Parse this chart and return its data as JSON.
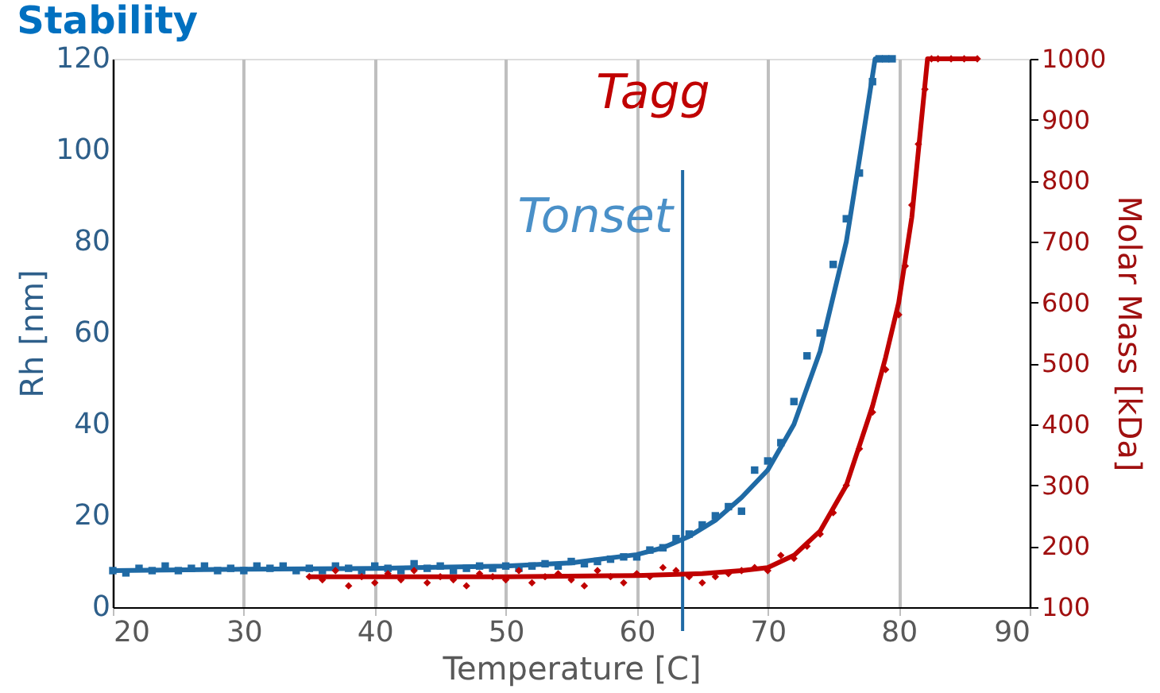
{
  "chart_data": {
    "type": "scatter",
    "title": "Stability",
    "xlabel": "Temperature [C]",
    "ylabel": "Rh [nm]",
    "y2label": "Molar Mass [kDa]",
    "xlim": [
      20,
      90
    ],
    "xticks": [
      20,
      30,
      40,
      50,
      60,
      70,
      80,
      90
    ],
    "ylim": [
      0,
      120
    ],
    "yticks": [
      0,
      20,
      40,
      60,
      80,
      100,
      120
    ],
    "y2lim": [
      100,
      1000
    ],
    "y2ticks": [
      100,
      200,
      300,
      400,
      500,
      600,
      700,
      800,
      900,
      1000
    ],
    "grid": "x",
    "legend": false,
    "ref_lines": [
      {
        "axis": "x",
        "value": 63.5,
        "label": "Tonset",
        "color": "#1f6aa5"
      }
    ],
    "annotations": [
      "Tagg"
    ],
    "series": [
      {
        "marker": "square",
        "color": "#1f6aa5",
        "x": [
          20,
          21,
          22,
          23,
          24,
          25,
          26,
          27,
          28,
          29,
          30,
          31,
          32,
          33,
          34,
          35,
          36,
          37,
          38,
          39,
          40,
          41,
          42,
          43,
          44,
          45,
          46,
          47,
          48,
          49,
          50,
          51,
          52,
          53,
          54,
          55,
          56,
          57,
          58,
          59,
          60,
          61,
          62,
          63,
          64,
          65,
          66,
          67,
          68,
          69,
          70,
          71,
          72,
          73,
          74,
          75,
          76,
          77,
          78,
          78.5,
          79,
          79.5
        ],
        "values": [
          8,
          7.5,
          8.5,
          8,
          9,
          8,
          8.5,
          9,
          8,
          8.5,
          8,
          9,
          8.5,
          9,
          8,
          8.5,
          8,
          9,
          8.5,
          8,
          9,
          8.5,
          8,
          9.5,
          8.5,
          9,
          8,
          8.5,
          9,
          8.5,
          9,
          8.5,
          9,
          9.5,
          9,
          10,
          9.5,
          10,
          10.5,
          11,
          11,
          12.5,
          13,
          15,
          16,
          18,
          20,
          22,
          21,
          30,
          32,
          36,
          45,
          55,
          60,
          75,
          85,
          95,
          115,
          120,
          120,
          120
        ]
      },
      {
        "type": "line",
        "marker": "none",
        "color": "#1f6aa5",
        "x": [
          20,
          30,
          40,
          50,
          55,
          60,
          62,
          64,
          66,
          68,
          70,
          72,
          74,
          76,
          77,
          78.2,
          79.5
        ],
        "values": [
          8,
          8.3,
          8.5,
          9,
          9.7,
          11.5,
          13,
          15.5,
          19,
          24,
          30,
          40,
          56,
          80,
          98,
          120,
          120
        ]
      },
      {
        "marker": "diamond",
        "axis": "y2",
        "color": "#c00000",
        "x": [
          35,
          36,
          37,
          38,
          39,
          40,
          41,
          42,
          43,
          44,
          45,
          46,
          47,
          48,
          49,
          50,
          51,
          52,
          53,
          54,
          55,
          56,
          57,
          58,
          59,
          60,
          61,
          62,
          63,
          64,
          65,
          66,
          67,
          68,
          69,
          70,
          71,
          72,
          73,
          74,
          75,
          76,
          77,
          78,
          79,
          80,
          80.5,
          81,
          81.5,
          82,
          82.5,
          83,
          84,
          85,
          86
        ],
        "values": [
          150,
          145,
          160,
          135,
          150,
          140,
          155,
          145,
          160,
          140,
          150,
          145,
          135,
          155,
          150,
          145,
          160,
          140,
          150,
          155,
          145,
          135,
          160,
          150,
          140,
          155,
          150,
          165,
          160,
          150,
          140,
          150,
          155,
          160,
          165,
          160,
          185,
          180,
          200,
          220,
          255,
          300,
          360,
          420,
          490,
          580,
          660,
          760,
          860,
          950,
          1000,
          1000,
          1000,
          1000,
          1000
        ]
      },
      {
        "type": "line",
        "marker": "none",
        "axis": "y2",
        "color": "#c00000",
        "x": [
          35,
          50,
          60,
          65,
          68,
          70,
          72,
          74,
          76,
          78,
          79,
          80,
          81,
          82.2,
          86
        ],
        "values": [
          150,
          150,
          152,
          155,
          160,
          165,
          185,
          225,
          300,
          430,
          510,
          600,
          740,
          1000,
          1000
        ]
      }
    ]
  }
}
